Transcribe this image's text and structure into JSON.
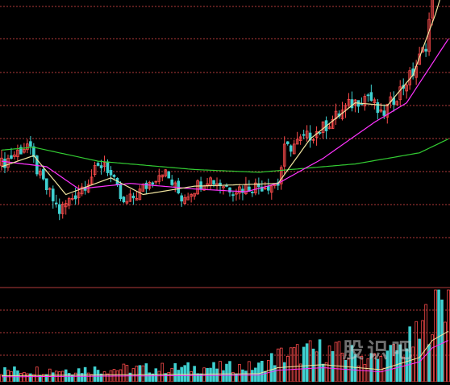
{
  "watermark": "股识吧",
  "colors": {
    "background": "#000000",
    "up": "#ff4c4c",
    "down": "#3fd0d0",
    "grid": "#b23a3a",
    "ma_short": "#f2e6a0",
    "ma_mid": "#ff33ff",
    "ma_long": "#33cc33"
  },
  "chart_data": {
    "type": "candlestick",
    "title": "",
    "xlabel": "",
    "ylabel": "",
    "grid": true,
    "price_range": [
      0,
      100
    ],
    "volume_range": [
      0,
      100
    ],
    "n_bars": 140,
    "anchors": [
      [
        0,
        41
      ],
      [
        8,
        48
      ],
      [
        12,
        36
      ],
      [
        18,
        24
      ],
      [
        26,
        34
      ],
      [
        32,
        42
      ],
      [
        38,
        26
      ],
      [
        44,
        32
      ],
      [
        50,
        39
      ],
      [
        56,
        29
      ],
      [
        64,
        36
      ],
      [
        72,
        32
      ],
      [
        86,
        34
      ],
      [
        88,
        46
      ],
      [
        100,
        54
      ],
      [
        108,
        62
      ],
      [
        114,
        66
      ],
      [
        118,
        58
      ],
      [
        128,
        74
      ],
      [
        132,
        84
      ],
      [
        135,
        110
      ],
      [
        139,
        118
      ]
    ],
    "ma_short_anchors": [
      [
        0,
        40
      ],
      [
        10,
        44
      ],
      [
        20,
        30
      ],
      [
        34,
        36
      ],
      [
        44,
        30
      ],
      [
        60,
        33
      ],
      [
        86,
        34
      ],
      [
        96,
        50
      ],
      [
        110,
        63
      ],
      [
        120,
        62
      ],
      [
        128,
        73
      ],
      [
        135,
        95
      ],
      [
        139,
        110
      ]
    ],
    "ma_mid_anchors": [
      [
        0,
        42
      ],
      [
        14,
        40
      ],
      [
        24,
        32
      ],
      [
        40,
        34
      ],
      [
        60,
        32
      ],
      [
        76,
        31
      ],
      [
        86,
        34
      ],
      [
        100,
        43
      ],
      [
        116,
        56
      ],
      [
        126,
        63
      ],
      [
        139,
        86
      ]
    ],
    "ma_long_anchors": [
      [
        0,
        46
      ],
      [
        10,
        47
      ],
      [
        30,
        42
      ],
      [
        60,
        39
      ],
      [
        80,
        38
      ],
      [
        110,
        41
      ],
      [
        130,
        45
      ],
      [
        139,
        50
      ]
    ],
    "volume_anchors": [
      [
        0,
        12
      ],
      [
        40,
        14
      ],
      [
        80,
        16
      ],
      [
        86,
        28
      ],
      [
        100,
        34
      ],
      [
        118,
        24
      ],
      [
        130,
        48
      ],
      [
        134,
        82
      ],
      [
        139,
        100
      ]
    ]
  }
}
